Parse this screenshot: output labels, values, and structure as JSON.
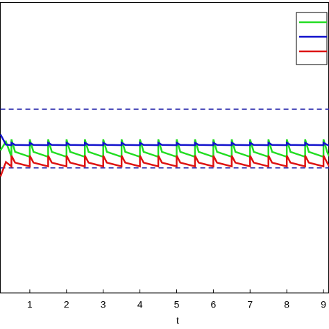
{
  "chart_data": {
    "type": "line",
    "xlabel": "t",
    "x": [
      0.2,
      0.35,
      0.5,
      0.5,
      0.6,
      1,
      1,
      1.1,
      1.5,
      1.5,
      1.6,
      2,
      2,
      2.1,
      2.5,
      2.5,
      2.6,
      3,
      3,
      3.1,
      3.5,
      3.5,
      3.6,
      4,
      4,
      4.1,
      4.5,
      4.5,
      4.6,
      5,
      5,
      5.1,
      5.5,
      5.5,
      5.6,
      6,
      6,
      6.1,
      6.5,
      6.5,
      6.6,
      7,
      7,
      7.1,
      7.5,
      7.5,
      7.6,
      8,
      8,
      8.1,
      8.5,
      8.5,
      8.6,
      9,
      9,
      9.1,
      9.15
    ],
    "series": [
      {
        "color": "#22dd22",
        "values": [
          0.49,
          0.52,
          0.468,
          0.528,
          0.485,
          0.468,
          0.528,
          0.485,
          0.468,
          0.528,
          0.485,
          0.468,
          0.528,
          0.485,
          0.468,
          0.528,
          0.485,
          0.468,
          0.528,
          0.485,
          0.468,
          0.528,
          0.485,
          0.468,
          0.528,
          0.485,
          0.468,
          0.528,
          0.485,
          0.468,
          0.528,
          0.485,
          0.468,
          0.528,
          0.485,
          0.468,
          0.528,
          0.485,
          0.468,
          0.528,
          0.485,
          0.468,
          0.528,
          0.485,
          0.468,
          0.528,
          0.485,
          0.468,
          0.528,
          0.485,
          0.468,
          0.528,
          0.485,
          0.468,
          0.528,
          0.485,
          0.47
        ]
      },
      {
        "color": "#1111cc",
        "values": [
          0.545,
          0.51,
          0.508,
          0.516,
          0.509,
          0.508,
          0.516,
          0.509,
          0.508,
          0.516,
          0.509,
          0.508,
          0.516,
          0.509,
          0.508,
          0.516,
          0.509,
          0.508,
          0.516,
          0.509,
          0.508,
          0.516,
          0.509,
          0.508,
          0.516,
          0.509,
          0.508,
          0.516,
          0.509,
          0.508,
          0.516,
          0.509,
          0.508,
          0.516,
          0.509,
          0.508,
          0.516,
          0.509,
          0.508,
          0.516,
          0.509,
          0.508,
          0.516,
          0.509,
          0.508,
          0.516,
          0.509,
          0.508,
          0.516,
          0.509,
          0.508,
          0.516,
          0.509,
          0.508,
          0.516,
          0.509,
          0.508
        ]
      },
      {
        "color": "#dd1111",
        "values": [
          0.4,
          0.45,
          0.435,
          0.472,
          0.448,
          0.435,
          0.472,
          0.448,
          0.435,
          0.472,
          0.448,
          0.435,
          0.472,
          0.448,
          0.435,
          0.472,
          0.448,
          0.435,
          0.472,
          0.448,
          0.435,
          0.472,
          0.448,
          0.435,
          0.472,
          0.448,
          0.435,
          0.472,
          0.448,
          0.435,
          0.472,
          0.448,
          0.435,
          0.472,
          0.448,
          0.435,
          0.472,
          0.448,
          0.435,
          0.472,
          0.448,
          0.435,
          0.472,
          0.448,
          0.435,
          0.472,
          0.448,
          0.435,
          0.472,
          0.448,
          0.435,
          0.472,
          0.448,
          0.435,
          0.472,
          0.448,
          0.436
        ]
      }
    ],
    "xlim": [
      0.2,
      9.15
    ],
    "xticks": [
      1,
      2,
      3,
      4,
      5,
      6,
      7,
      8,
      9
    ],
    "ylim": [
      0,
      1
    ],
    "hlines": [
      0.632,
      0.43
    ],
    "hline_color": "#2222aa",
    "legend": "upper right"
  }
}
